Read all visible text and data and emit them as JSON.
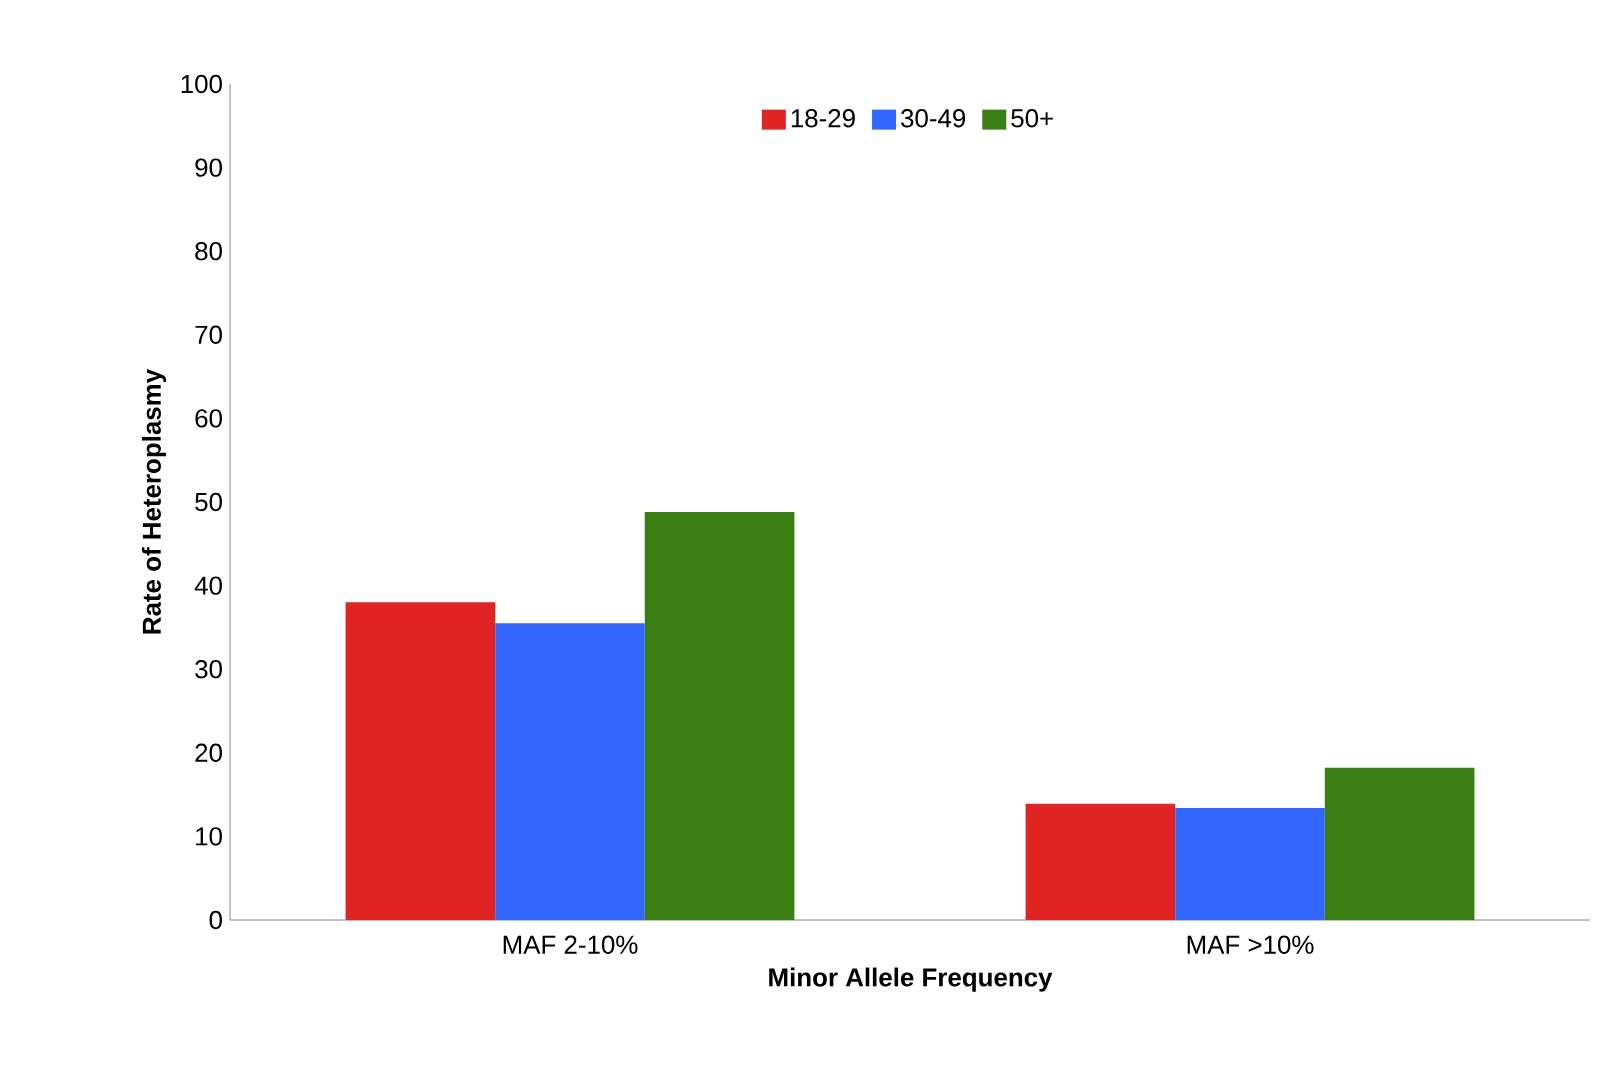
{
  "chart_data": {
    "type": "bar",
    "xlabel": "Minor Allele Frequency",
    "ylabel": "Rate of Heteroplasmy",
    "categories": [
      "MAF 2-10%",
      "MAF >10%"
    ],
    "series": [
      {
        "name": "18-29",
        "color": "#e02424",
        "values": [
          38,
          13.9
        ]
      },
      {
        "name": "30-49",
        "color": "#3366ff",
        "values": [
          35.5,
          13.4
        ]
      },
      {
        "name": "50+",
        "color": "#3a7d12",
        "values": [
          48.8,
          18.2
        ]
      }
    ],
    "ylim": [
      0,
      100
    ],
    "yticks": [
      0,
      10,
      20,
      30,
      40,
      50,
      60,
      70,
      80,
      90,
      100
    ],
    "grid": false,
    "legend": "top"
  }
}
